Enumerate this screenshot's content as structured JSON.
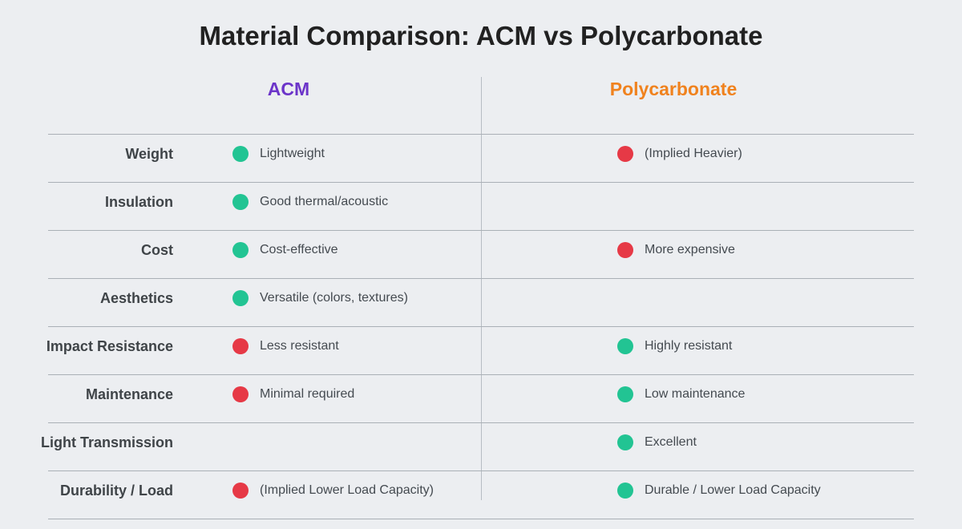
{
  "title": "Material Comparison: ACM vs Polycarbonate",
  "columns": {
    "acm": {
      "name": "ACM",
      "color": "#6c35c9"
    },
    "poly": {
      "name": "Polycarbonate",
      "color": "#f0821e"
    }
  },
  "status_colors": {
    "pro": "#22c493",
    "con": "#e63946"
  },
  "rows": [
    {
      "label": "Weight",
      "acm": {
        "text": "Lightweight",
        "status": "pro"
      },
      "poly": {
        "text": "(Implied Heavier)",
        "status": "con"
      }
    },
    {
      "label": "Insulation",
      "acm": {
        "text": "Good thermal/acoustic",
        "status": "pro"
      },
      "poly": null
    },
    {
      "label": "Cost",
      "acm": {
        "text": "Cost-effective",
        "status": "pro"
      },
      "poly": {
        "text": "More expensive",
        "status": "con"
      }
    },
    {
      "label": "Aesthetics",
      "acm": {
        "text": "Versatile (colors, textures)",
        "status": "pro"
      },
      "poly": null
    },
    {
      "label": "Impact Resistance",
      "acm": {
        "text": "Less resistant",
        "status": "con"
      },
      "poly": {
        "text": "Highly resistant",
        "status": "pro"
      }
    },
    {
      "label": "Maintenance",
      "acm": {
        "text": "Minimal required",
        "status": "con"
      },
      "poly": {
        "text": "Low maintenance",
        "status": "pro"
      }
    },
    {
      "label": "Light Transmission",
      "acm": null,
      "poly": {
        "text": "Excellent",
        "status": "pro"
      }
    },
    {
      "label": "Durability / Load",
      "acm": {
        "text": "(Implied Lower Load Capacity)",
        "status": "con"
      },
      "poly": {
        "text": "Durable / Lower Load Capacity",
        "status": "pro"
      }
    }
  ]
}
